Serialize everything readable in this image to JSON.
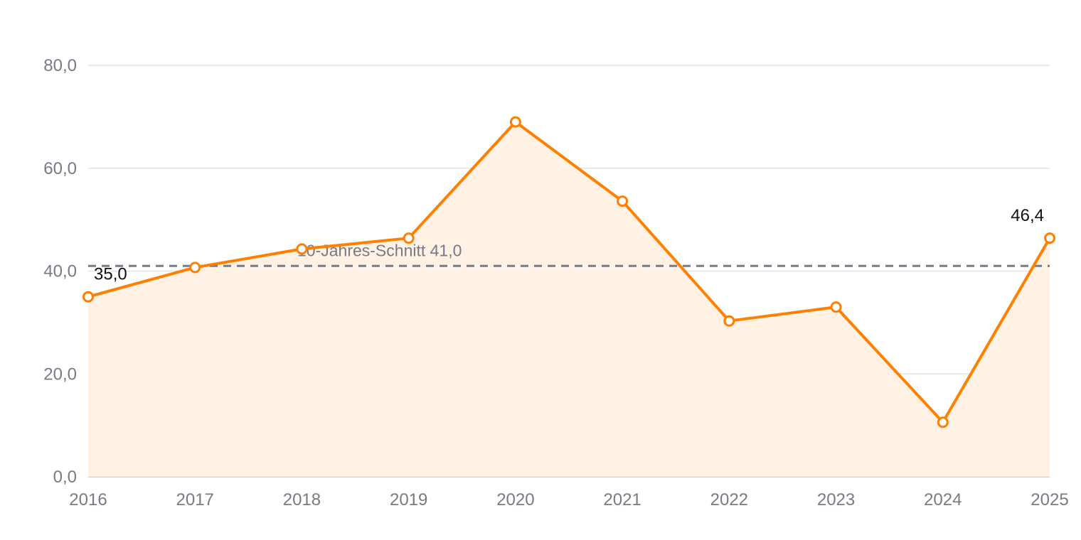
{
  "chart_data": {
    "type": "line",
    "title": "",
    "xlabel": "",
    "ylabel": "",
    "categories": [
      "2016",
      "2017",
      "2018",
      "2019",
      "2020",
      "2021",
      "2022",
      "2023",
      "2024",
      "2025"
    ],
    "series": [
      {
        "values": [
          35.0,
          40.7,
          44.3,
          46.4,
          69.0,
          53.6,
          30.3,
          33.0,
          10.6,
          46.4
        ]
      }
    ],
    "ylim": [
      0,
      80
    ],
    "y_ticks": [
      "0,0",
      "20,0",
      "40,0",
      "60,0",
      "80,0"
    ],
    "y_tick_values": [
      0,
      20,
      40,
      60,
      80
    ],
    "reference_line": {
      "value": 41.0,
      "label": "10-Jahres-Schnitt 41,0"
    },
    "data_labels": [
      {
        "index": 0,
        "text": "35,0"
      },
      {
        "index": 9,
        "text": "46,4"
      }
    ],
    "area_fill": true,
    "grid": true,
    "legend": "none",
    "colors": {
      "series": "#ff8000",
      "area": "#fff1e4",
      "reference": "#6f7f8f"
    }
  }
}
